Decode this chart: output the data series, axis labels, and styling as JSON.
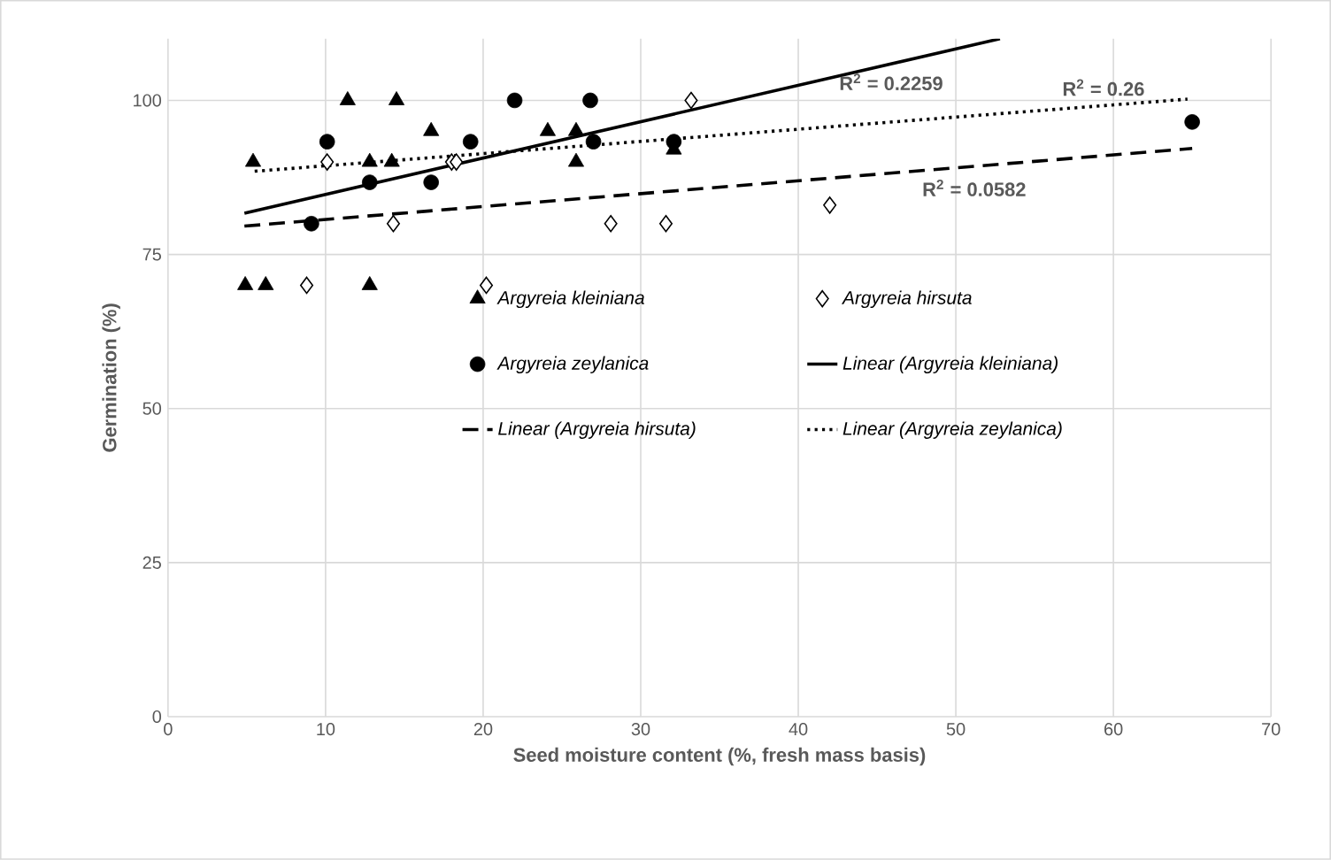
{
  "chart_data": {
    "type": "scatter",
    "xlabel": "Seed moisture content (%, fresh mass basis)",
    "ylabel": "Germination (%)",
    "xlim": [
      0,
      70
    ],
    "xticks": [
      0,
      10,
      20,
      30,
      40,
      50,
      60,
      70
    ],
    "ylim": [
      0,
      110
    ],
    "yticks": [
      0,
      25,
      50,
      75,
      100
    ],
    "grid": true,
    "legend": "center",
    "series": [
      {
        "name": "Argyreia kleiniana",
        "type": "scatter",
        "marker": "triangle",
        "color": "#000000",
        "x": [
          5.4,
          11.4,
          14.5,
          16.7,
          12.8,
          14.2,
          24.1,
          25.9,
          25.9,
          32.1,
          4.9,
          6.2,
          12.8
        ],
        "values": [
          90,
          100,
          100,
          95,
          90,
          90,
          95,
          95,
          90,
          92,
          70,
          70,
          70
        ]
      },
      {
        "name": "Argyreia hirsuta",
        "type": "scatter",
        "marker": "diamond",
        "color": "#000000",
        "x": [
          10.1,
          18.0,
          18.3,
          33.2,
          14.3,
          28.1,
          31.6,
          8.8,
          20.2,
          42.0
        ],
        "values": [
          90,
          90,
          90,
          100,
          80,
          80,
          80,
          70,
          70,
          83
        ]
      },
      {
        "name": "Argyreia zeylanica",
        "type": "scatter",
        "marker": "circle",
        "color": "#000000",
        "x": [
          10.1,
          12.8,
          16.7,
          19.2,
          22.0,
          26.8,
          27.0,
          32.1,
          9.1,
          65.0
        ],
        "values": [
          93.3,
          86.7,
          86.7,
          93.3,
          100,
          100,
          93.3,
          93.3,
          80,
          96.5
        ]
      },
      {
        "name": "Linear (Argyreia kleiniana)",
        "type": "line",
        "line_style": "solid",
        "color": "#000000",
        "x": [
          4.85,
          52.8
        ],
        "values": [
          81.7,
          110
        ]
      },
      {
        "name": "Linear (Argyreia hirsuta)",
        "type": "line",
        "line_style": "dashed",
        "color": "#000000",
        "x": [
          4.85,
          65.0
        ],
        "values": [
          79.6,
          92.2
        ]
      },
      {
        "name": "Linear (Argyreia zeylanica)",
        "type": "line",
        "line_style": "dotted",
        "color": "#000000",
        "x": [
          5.5,
          64.7
        ],
        "values": [
          88.5,
          100.2
        ]
      }
    ],
    "annotations": [
      "R$^{2}$ = 0.2259",
      "R$^{2}$ = 0.0582",
      "R$^{2}$ = 0.26"
    ]
  }
}
